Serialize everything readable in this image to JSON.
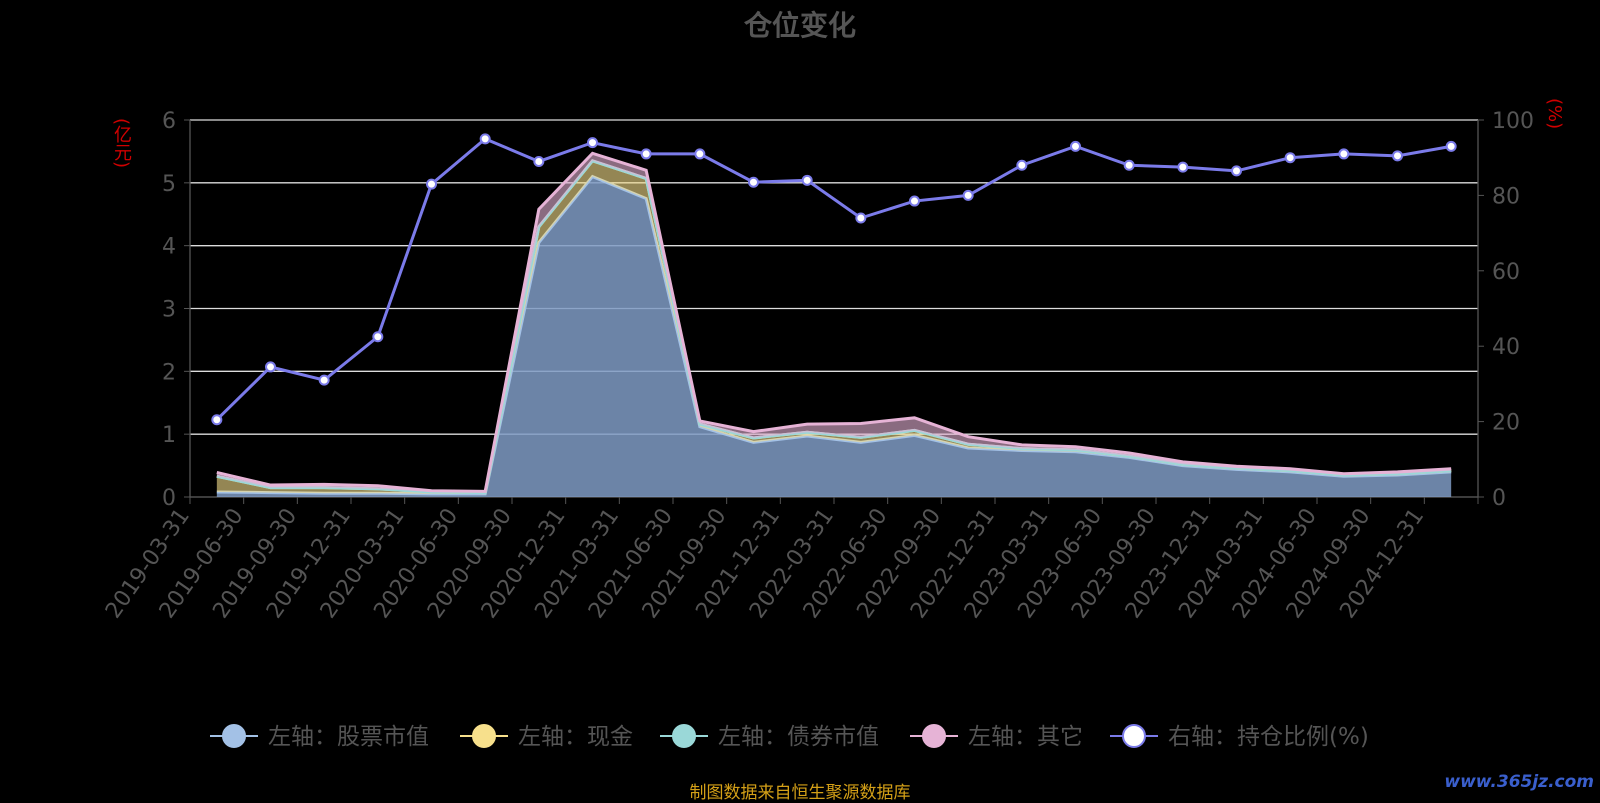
{
  "chart_data": {
    "type": "area",
    "title": "仓位变化",
    "left_axis_unit": "(亿元)",
    "right_axis_unit": "(%)",
    "x": [
      "2019-03-31",
      "2019-06-30",
      "2019-09-30",
      "2019-12-31",
      "2020-03-31",
      "2020-06-30",
      "2020-09-30",
      "2020-12-31",
      "2021-03-31",
      "2021-06-30",
      "2021-09-30",
      "2021-12-31",
      "2022-03-31",
      "2022-06-30",
      "2022-09-30",
      "2022-12-31",
      "2023-03-31",
      "2023-06-30",
      "2023-09-30",
      "2023-12-31",
      "2024-03-31",
      "2024-06-30",
      "2024-09-30",
      "2024-12-31"
    ],
    "ylim_left": [
      0,
      6
    ],
    "yticks_left": [
      0,
      1,
      2,
      3,
      4,
      5,
      6
    ],
    "ylim_right": [
      0,
      100
    ],
    "yticks_right": [
      0,
      20,
      40,
      60,
      80,
      100
    ],
    "grid": true,
    "legend_position": "bottom",
    "series": [
      {
        "name": "左轴：股票市值",
        "axis": "left",
        "color": "#a3c1e6",
        "values": [
          0.08,
          0.07,
          0.06,
          0.06,
          0.05,
          0.05,
          4.05,
          5.1,
          4.75,
          1.12,
          0.87,
          0.97,
          0.87,
          0.98,
          0.78,
          0.74,
          0.72,
          0.63,
          0.5,
          0.44,
          0.4,
          0.33,
          0.35,
          0.4
        ]
      },
      {
        "name": "左轴：现金",
        "axis": "left",
        "color": "#f7e08c",
        "values": [
          0.25,
          0.08,
          0.09,
          0.07,
          0.03,
          0.02,
          0.25,
          0.25,
          0.32,
          0.04,
          0.07,
          0.06,
          0.08,
          0.08,
          0.06,
          0.03,
          0.03,
          0.02,
          0.02,
          0.02,
          0.02,
          0.02,
          0.02,
          0.02
        ]
      },
      {
        "name": "左轴：债券市值",
        "axis": "left",
        "color": "#9ad8d8",
        "values": [
          0,
          0,
          0,
          0,
          0,
          0,
          0,
          0,
          0,
          0,
          0,
          0,
          0,
          0,
          0,
          0,
          0,
          0,
          0,
          0,
          0,
          0,
          0,
          0
        ]
      },
      {
        "name": "左轴：其它",
        "axis": "left",
        "color": "#e6b3d6",
        "values": [
          0.06,
          0.04,
          0.05,
          0.05,
          0.02,
          0.02,
          0.28,
          0.12,
          0.13,
          0.05,
          0.1,
          0.13,
          0.22,
          0.2,
          0.12,
          0.06,
          0.05,
          0.05,
          0.04,
          0.03,
          0.03,
          0.02,
          0.03,
          0.03
        ]
      },
      {
        "name": "右轴：持仓比例(%)",
        "axis": "right",
        "color": "#7b7bea",
        "values": [
          20.5,
          34.5,
          31,
          42.5,
          83,
          95,
          89,
          94,
          91,
          91,
          83.5,
          84,
          74,
          78.5,
          80,
          88,
          93,
          88,
          87.5,
          86.5,
          90,
          91,
          90.5,
          93
        ]
      }
    ],
    "source_note": "制图数据来自恒生聚源数据库",
    "watermark": "www.365jz.com"
  }
}
